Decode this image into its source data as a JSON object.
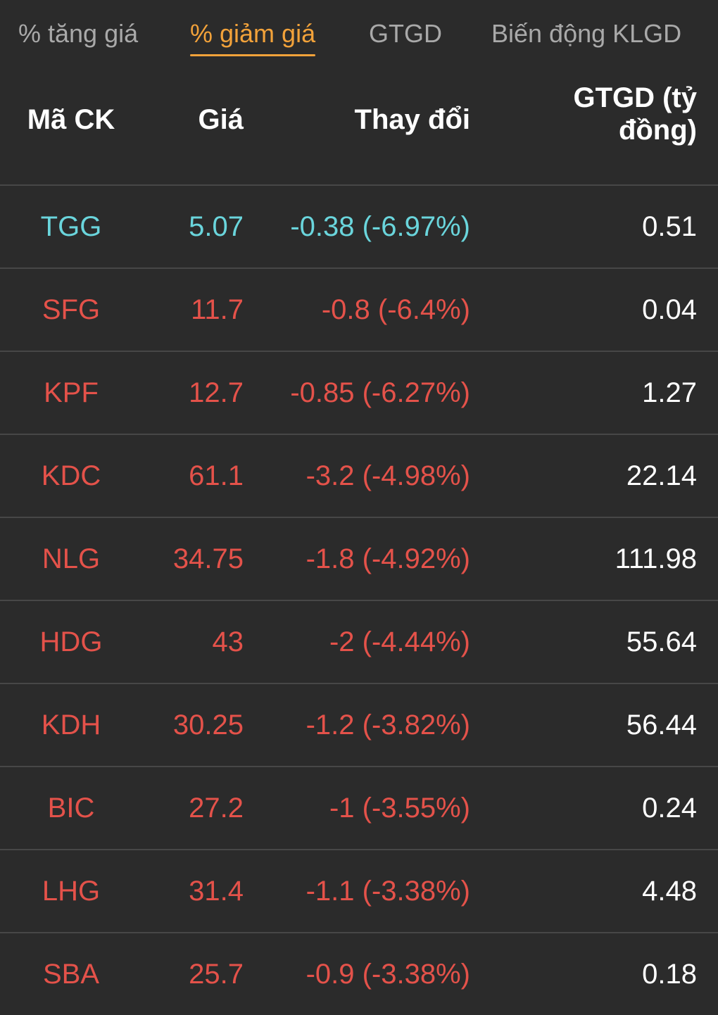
{
  "tabs": [
    {
      "label": "% tăng giá",
      "active": false
    },
    {
      "label": "% giảm giá",
      "active": true
    },
    {
      "label": "GTGD",
      "active": false
    },
    {
      "label": "Biến động KLGD",
      "active": false
    }
  ],
  "table": {
    "headers": {
      "code": "Mã CK",
      "price": "Giá",
      "change": "Thay đổi",
      "value": "GTGD (tỷ đồng)"
    },
    "rows": [
      {
        "code": "TGG",
        "price": "5.07",
        "change": "-0.38 (-6.97%)",
        "value": "0.51",
        "status": "floor"
      },
      {
        "code": "SFG",
        "price": "11.7",
        "change": "-0.8 (-6.4%)",
        "value": "0.04",
        "status": "down"
      },
      {
        "code": "KPF",
        "price": "12.7",
        "change": "-0.85 (-6.27%)",
        "value": "1.27",
        "status": "down"
      },
      {
        "code": "KDC",
        "price": "61.1",
        "change": "-3.2 (-4.98%)",
        "value": "22.14",
        "status": "down"
      },
      {
        "code": "NLG",
        "price": "34.75",
        "change": "-1.8 (-4.92%)",
        "value": "111.98",
        "status": "down"
      },
      {
        "code": "HDG",
        "price": "43",
        "change": "-2 (-4.44%)",
        "value": "55.64",
        "status": "down"
      },
      {
        "code": "KDH",
        "price": "30.25",
        "change": "-1.2 (-3.82%)",
        "value": "56.44",
        "status": "down"
      },
      {
        "code": "BIC",
        "price": "27.2",
        "change": "-1 (-3.55%)",
        "value": "0.24",
        "status": "down"
      },
      {
        "code": "LHG",
        "price": "31.4",
        "change": "-1.1 (-3.38%)",
        "value": "4.48",
        "status": "down"
      },
      {
        "code": "SBA",
        "price": "25.7",
        "change": "-0.9 (-3.38%)",
        "value": "0.18",
        "status": "down"
      }
    ]
  },
  "colors": {
    "background": "#2b2b2b",
    "accent": "#f2a23a",
    "down": "#e4524a",
    "floor": "#6ad5dc",
    "divider": "#474747"
  }
}
